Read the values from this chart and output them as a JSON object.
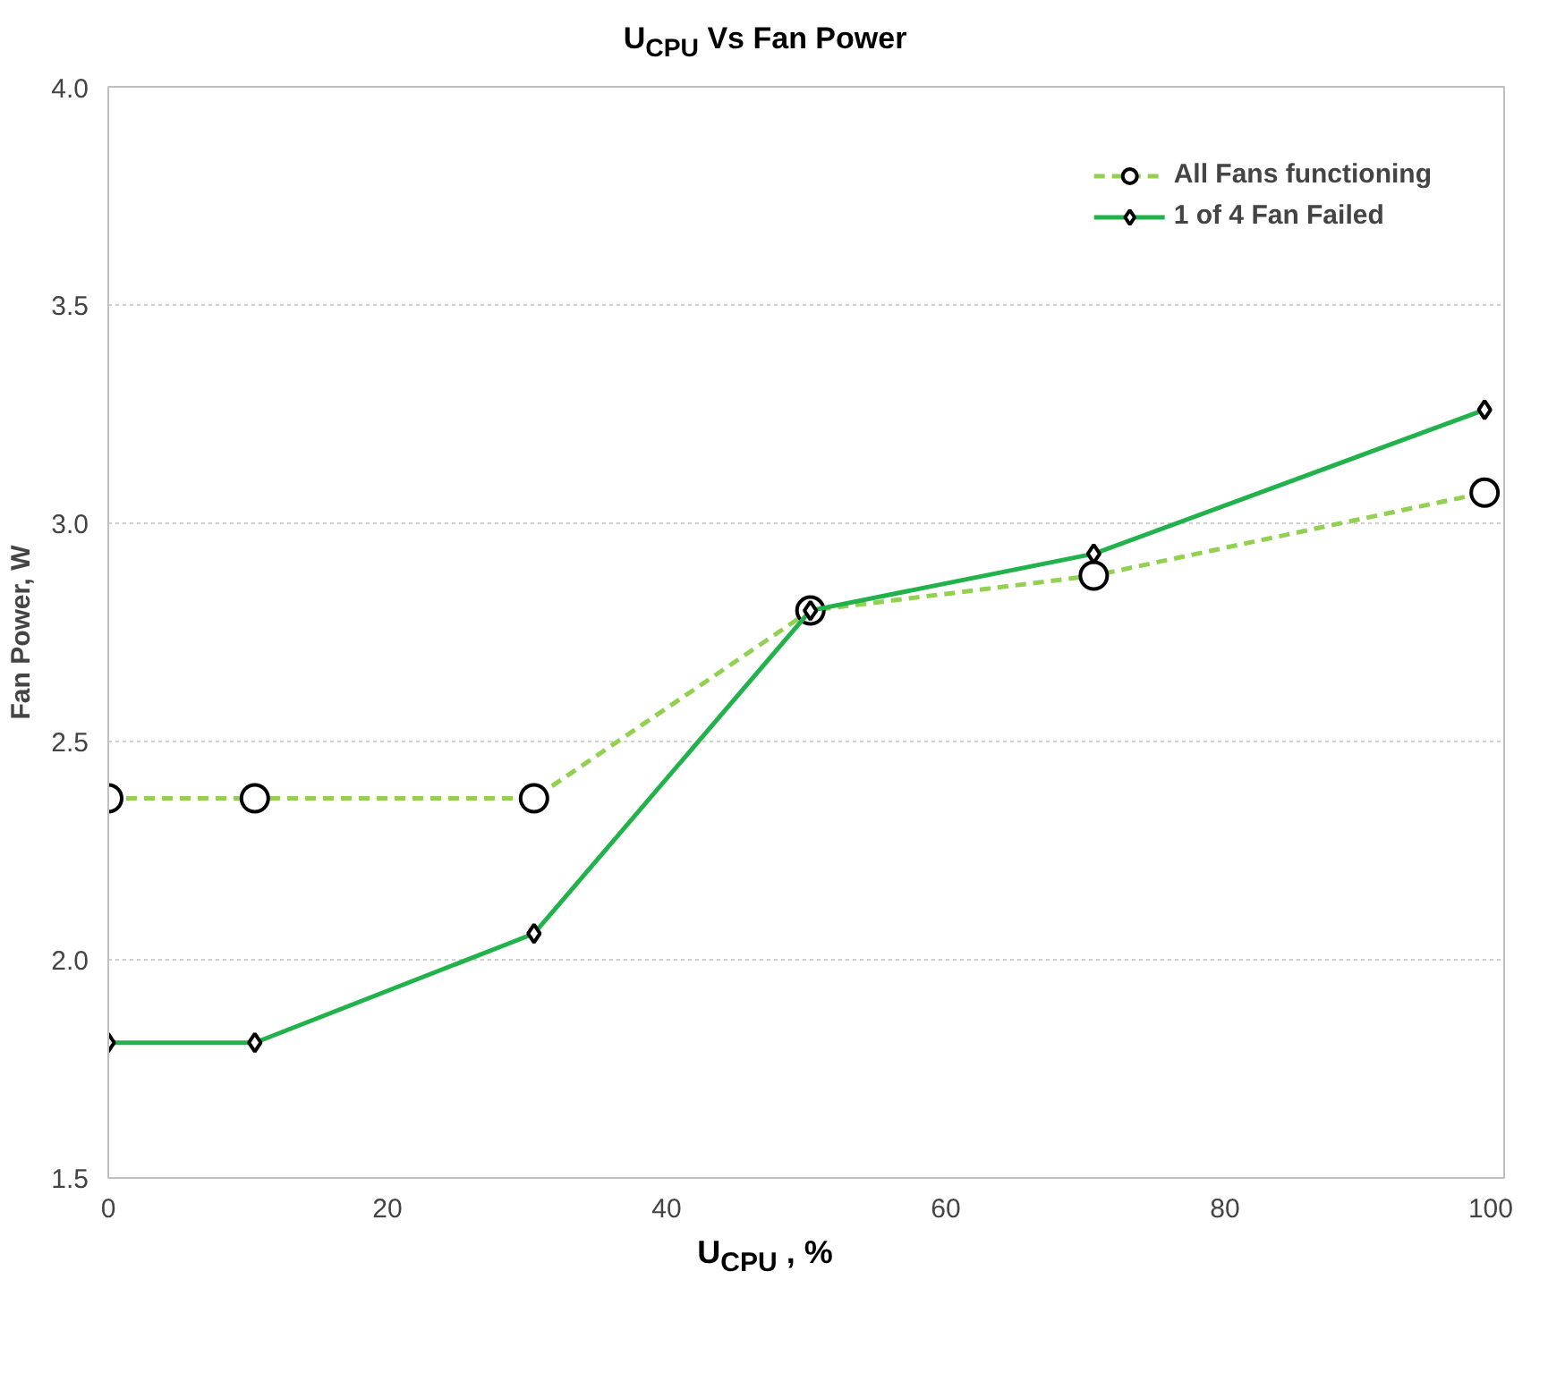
{
  "chart_data": {
    "type": "line",
    "title": "U$_{CPU}$ Vs Fan Power",
    "xlabel": "U$_{CPU}$ , %",
    "ylabel": "Fan Power, W",
    "xlim": [
      0,
      100
    ],
    "xticks": [
      0,
      20,
      40,
      60,
      80,
      100
    ],
    "ylim": [
      1.5,
      4.0
    ],
    "yticks": [
      {
        "value": 1.5,
        "label": "1.5"
      },
      {
        "value": 2.0,
        "label": "2.0"
      },
      {
        "value": 2.5,
        "label": "2.5"
      },
      {
        "value": 3.0,
        "label": "3.0"
      },
      {
        "value": 3.5,
        "label": "3.5"
      },
      {
        "value": 4.0,
        "label": "4.0"
      }
    ],
    "grid": "y",
    "legend": "top right",
    "x": [
      0,
      10.5,
      30.5,
      50.3,
      70.6,
      98.6
    ],
    "series": [
      {
        "name": "All Fans functioning",
        "color": "#92d050",
        "line_style": "dashed",
        "marker": "circle",
        "values": [
          2.37,
          2.37,
          2.37,
          2.8,
          2.88,
          3.07
        ]
      },
      {
        "name": "1 of 4 Fan Failed",
        "color": "#22b24c",
        "line_style": "solid",
        "marker": "diamond",
        "values": [
          1.81,
          1.81,
          2.06,
          2.8,
          2.93,
          3.26
        ]
      }
    ]
  }
}
